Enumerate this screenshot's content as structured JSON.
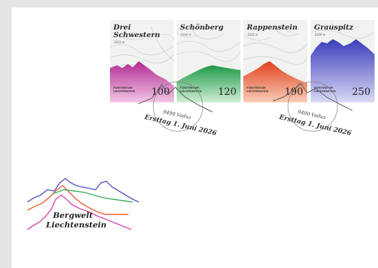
{
  "stamps": [
    {
      "name": "Drei\nSchwestern",
      "elevation": "2052 m",
      "country": "FÜRSTENTUM\nLIECHTENSTEIN",
      "value": "100",
      "color": "#cf3fa9"
    },
    {
      "name": "Schönberg",
      "elevation": "2104 m",
      "country": "FÜRSTENTUM\nLIECHTENSTEIN",
      "value": "120",
      "color": "#2fae5a"
    },
    {
      "name": "Rappenstein",
      "elevation": "2222 m",
      "country": "FÜRSTENTUM\nLIECHTENSTEIN",
      "value": "190",
      "color": "#e8552a"
    },
    {
      "name": "Grauspitz",
      "elevation": "2599 m",
      "country": "FÜRSTENTUM\nLIECHTENSTEIN",
      "value": "250",
      "color": "#4a4cc2"
    }
  ],
  "postmarks": [
    {
      "line1": "9490 Vaduz",
      "line2": "Ersttag 1. Juni 2026"
    },
    {
      "line1": "9490 Vaduz",
      "line2": "Ersttag 1. Juni 2026"
    }
  ],
  "logo": {
    "line1": "Bergwelt",
    "line2": "Liechtenstein",
    "colors": [
      "#4a4cc2",
      "#e8552a",
      "#2fae5a",
      "#cf3fa9"
    ]
  }
}
